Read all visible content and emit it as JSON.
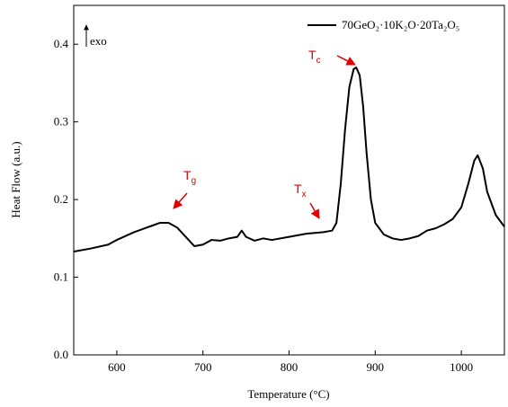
{
  "chart_data": {
    "type": "line",
    "x_label": "Temperature (°C)",
    "y_label": "Heat Flow (a.u.)",
    "xlim": [
      550,
      1050
    ],
    "xticks": [
      600,
      700,
      800,
      900,
      1000
    ],
    "ylim": [
      0,
      0.45
    ],
    "yticks": [
      {
        "value": 0,
        "label": "0.0"
      },
      0.1,
      0.2,
      0.3,
      0.4
    ],
    "legend_position": "upper right",
    "exo_label": "exo",
    "annotations": [
      {
        "text": "T",
        "sub": "g"
      },
      {
        "text": "T",
        "sub": "x"
      },
      {
        "text": "T",
        "sub": "c"
      }
    ],
    "x": [
      550,
      570,
      590,
      600,
      620,
      640,
      650,
      660,
      670,
      680,
      690,
      700,
      710,
      720,
      730,
      740,
      745,
      750,
      760,
      770,
      780,
      800,
      820,
      840,
      850,
      855,
      860,
      865,
      870,
      875,
      878,
      882,
      886,
      890,
      895,
      900,
      910,
      920,
      930,
      940,
      950,
      960,
      970,
      980,
      990,
      1000,
      1008,
      1015,
      1019,
      1025,
      1030,
      1040,
      1050
    ],
    "series": [
      {
        "name": "70GeO₂·10K₂O·20Ta₂O₅",
        "color": "#000000",
        "values": [
          0.133,
          0.137,
          0.142,
          0.148,
          0.158,
          0.166,
          0.17,
          0.17,
          0.164,
          0.152,
          0.14,
          0.142,
          0.148,
          0.147,
          0.15,
          0.152,
          0.16,
          0.152,
          0.147,
          0.15,
          0.148,
          0.152,
          0.156,
          0.158,
          0.16,
          0.17,
          0.22,
          0.29,
          0.345,
          0.368,
          0.37,
          0.36,
          0.32,
          0.26,
          0.2,
          0.17,
          0.155,
          0.15,
          0.148,
          0.15,
          0.153,
          0.16,
          0.163,
          0.168,
          0.175,
          0.19,
          0.22,
          0.25,
          0.257,
          0.24,
          0.21,
          0.18,
          0.165
        ]
      }
    ]
  }
}
